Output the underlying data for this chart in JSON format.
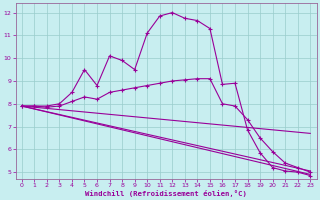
{
  "xlabel": "Windchill (Refroidissement éolien,°C)",
  "bg_color": "#c8eef0",
  "line_color": "#990099",
  "grid_color": "#99cccc",
  "xlim": [
    -0.5,
    23.5
  ],
  "ylim": [
    4.7,
    12.4
  ],
  "x_ticks": [
    0,
    1,
    2,
    3,
    4,
    5,
    6,
    7,
    8,
    9,
    10,
    11,
    12,
    13,
    14,
    15,
    16,
    17,
    18,
    19,
    20,
    21,
    22,
    23
  ],
  "y_ticks": [
    5,
    6,
    7,
    8,
    9,
    10,
    11,
    12
  ],
  "line1_x": [
    0,
    1,
    2,
    3,
    4,
    5,
    6,
    7,
    8,
    9,
    10,
    11,
    12,
    13,
    14,
    15,
    16,
    17,
    18,
    19,
    20,
    21,
    22,
    23
  ],
  "line1_y": [
    7.9,
    7.9,
    7.9,
    8.0,
    8.5,
    9.5,
    8.8,
    10.1,
    9.9,
    9.5,
    11.1,
    11.85,
    12.0,
    11.75,
    11.65,
    11.3,
    8.85,
    8.9,
    6.85,
    5.85,
    5.2,
    5.05,
    5.0,
    4.85
  ],
  "line2_x": [
    0,
    1,
    2,
    3,
    4,
    5,
    6,
    7,
    8,
    9,
    10,
    11,
    12,
    13,
    14,
    15,
    16,
    17,
    18,
    19,
    20,
    21,
    22,
    23
  ],
  "line2_y": [
    7.9,
    7.9,
    7.85,
    7.9,
    8.1,
    8.3,
    8.2,
    8.5,
    8.6,
    8.7,
    8.8,
    8.9,
    9.0,
    9.05,
    9.1,
    9.1,
    8.0,
    7.9,
    7.3,
    6.5,
    5.9,
    5.4,
    5.2,
    5.0
  ],
  "line3_x": [
    0,
    23
  ],
  "line3_y": [
    7.9,
    4.9
  ],
  "line4_x": [
    0,
    23
  ],
  "line4_y": [
    7.9,
    5.05
  ],
  "line5_x": [
    0,
    23
  ],
  "line5_y": [
    7.9,
    6.7
  ]
}
